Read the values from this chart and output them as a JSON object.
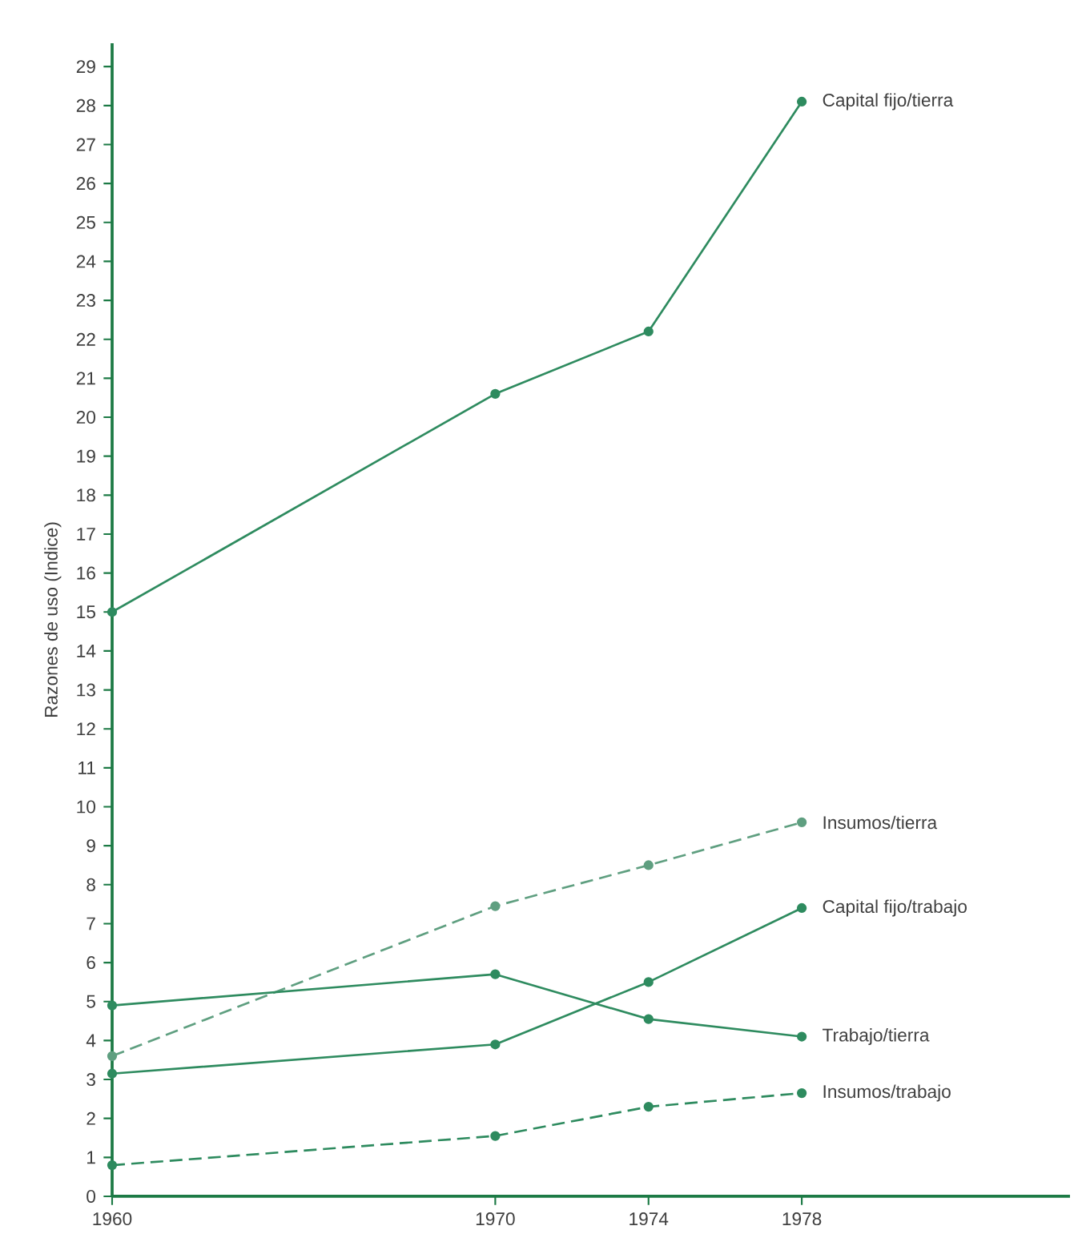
{
  "chart_data": {
    "type": "line",
    "ylabel": "Razones de uso (Indice)",
    "x": [
      1960,
      1970,
      1974,
      1978
    ],
    "xlim": [
      1960,
      1985
    ],
    "xticks": [
      1960,
      1970,
      1974,
      1978
    ],
    "ylim": [
      0,
      29.6
    ],
    "yticks": [
      0,
      1,
      2,
      3,
      4,
      5,
      6,
      7,
      8,
      9,
      10,
      11,
      12,
      13,
      14,
      15,
      16,
      17,
      18,
      19,
      20,
      21,
      22,
      23,
      24,
      25,
      26,
      27,
      28,
      29
    ],
    "marker": "circle",
    "series": [
      {
        "name": "Capital fijo/tierra",
        "color": "#2e8b5f",
        "line_style": "solid",
        "values": [
          15,
          20.6,
          22.2,
          28.1
        ]
      },
      {
        "name": "Insumos/tierra",
        "color": "#5f9f80",
        "line_style": "dashed",
        "values": [
          3.6,
          7.45,
          8.5,
          9.6
        ]
      },
      {
        "name": "Capital fijo/trabajo",
        "color": "#2e8b5f",
        "line_style": "solid",
        "values": [
          3.15,
          3.9,
          5.5,
          7.4
        ]
      },
      {
        "name": "Trabajo/tierra",
        "color": "#2e8b5f",
        "line_style": "solid",
        "values": [
          4.9,
          5.7,
          4.55,
          4.1
        ]
      },
      {
        "name": "Insumos/trabajo",
        "color": "#2e8b5f",
        "line_style": "dashed",
        "values": [
          0.8,
          1.55,
          2.3,
          2.65
        ]
      }
    ]
  }
}
